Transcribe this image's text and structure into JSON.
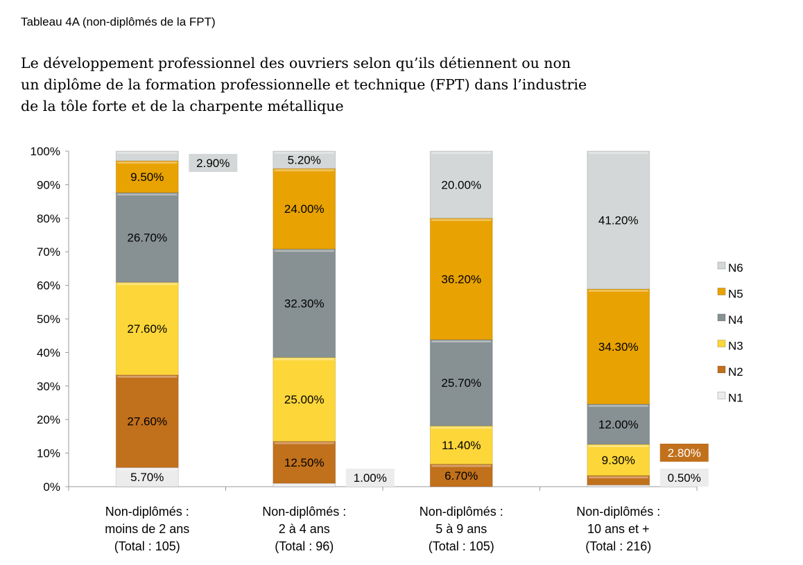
{
  "subtitle": "Tableau 4A (non-diplômés de la FPT)",
  "title_lines": [
    "Le développement professionnel des ouvriers selon qu’ils détiennent ou non",
    "un diplôme de la formation professionnelle et technique (FPT) dans l’industrie",
    "de la tôle forte et de la charpente métallique"
  ],
  "chart_data": {
    "type": "bar",
    "stacked": true,
    "percent": true,
    "ylim": [
      0,
      100
    ],
    "yticks": [
      "0%",
      "10%",
      "20%",
      "30%",
      "40%",
      "50%",
      "60%",
      "70%",
      "80%",
      "90%",
      "100%"
    ],
    "grid": false,
    "legend_position": "right",
    "categories": [
      [
        "Non-diplômés :",
        "moins de 2 ans",
        "(Total : 105)"
      ],
      [
        "Non-diplômés :",
        "2 à 4 ans",
        "(Total : 96)"
      ],
      [
        "Non-diplômés :",
        "5 à 9 ans",
        "(Total : 105)"
      ],
      [
        "Non-diplômés :",
        "10 ans et +",
        "(Total : 216)"
      ]
    ],
    "series": [
      {
        "name": "N1",
        "color": "#ececec",
        "values": [
          5.7,
          1.0,
          null,
          0.5
        ],
        "labels": [
          "5.70%",
          "1.00%",
          null,
          "0.50%"
        ]
      },
      {
        "name": "N2",
        "color": "#c1701c",
        "values": [
          27.6,
          12.5,
          6.7,
          2.8
        ],
        "labels": [
          "27.60%",
          "12.50%",
          "6.70%",
          "2.80%"
        ]
      },
      {
        "name": "N3",
        "color": "#fdd63a",
        "values": [
          27.6,
          25.0,
          11.4,
          9.3
        ],
        "labels": [
          "27.60%",
          "25.00%",
          "11.40%",
          "9.30%"
        ]
      },
      {
        "name": "N4",
        "color": "#879193",
        "values": [
          26.7,
          32.3,
          25.7,
          12.0
        ],
        "labels": [
          "26.70%",
          "32.30%",
          "25.70%",
          "12.00%"
        ]
      },
      {
        "name": "N5",
        "color": "#e8a202",
        "values": [
          9.5,
          24.0,
          36.2,
          34.3
        ],
        "labels": [
          "9.50%",
          "24.00%",
          "36.20%",
          "34.30%"
        ]
      },
      {
        "name": "N6",
        "color": "#d4d7d7",
        "values": [
          2.9,
          5.2,
          20.0,
          41.2
        ],
        "labels": [
          "2.90%",
          "5.20%",
          "20.00%",
          "41.20%"
        ]
      }
    ]
  }
}
